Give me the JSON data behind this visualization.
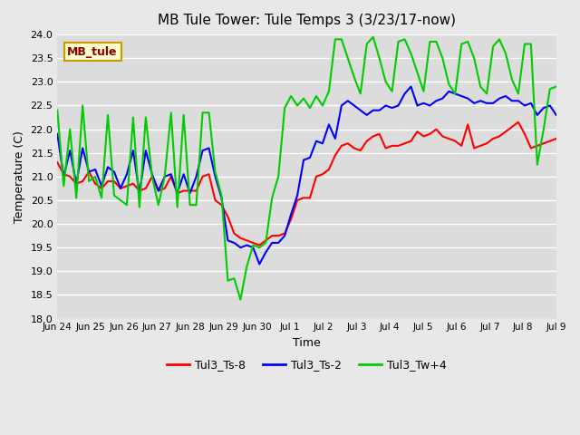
{
  "title": "MB Tule Tower: Tule Temps 3 (3/23/17-now)",
  "xlabel": "Time",
  "ylabel": "Temperature (C)",
  "ylim": [
    18.0,
    24.0
  ],
  "yticks": [
    18.0,
    18.5,
    19.0,
    19.5,
    20.0,
    20.5,
    21.0,
    21.5,
    22.0,
    22.5,
    23.0,
    23.5,
    24.0
  ],
  "bg_color": "#e8e8e8",
  "plot_bg_color": "#dcdcdc",
  "grid_color": "#ffffff",
  "legend_label": "MB_tule",
  "legend_bg": "#ffffcc",
  "legend_border": "#cc9900",
  "series_labels": [
    "Tul3_Ts-8",
    "Tul3_Ts-2",
    "Tul3_Tw+4"
  ],
  "series_colors": [
    "#ff0000",
    "#0000ff",
    "#00cc00"
  ],
  "line_width": 1.5,
  "x_tick_labels": [
    "Jun 24",
    "Jun 25",
    "Jun 26",
    "Jun 27",
    "Jun 28",
    "Jun 29",
    "Jun 30",
    "Jul 1",
    "Jul 2",
    "Jul 3",
    "Jul 4",
    "Jul 5",
    "Jul 6",
    "Jul 7",
    "Jul 8",
    "Jul 9"
  ],
  "x_tick_positions": [
    0,
    1,
    2,
    3,
    4,
    5,
    6,
    7,
    8,
    9,
    10,
    11,
    12,
    13,
    14,
    15
  ],
  "Ts8_y": [
    21.3,
    21.05,
    21.0,
    20.85,
    20.9,
    21.1,
    20.85,
    20.75,
    20.9,
    20.9,
    20.75,
    20.8,
    20.85,
    20.7,
    20.75,
    21.0,
    20.7,
    20.75,
    21.0,
    20.65,
    20.7,
    20.7,
    20.7,
    21.0,
    21.05,
    20.5,
    20.4,
    20.15,
    19.8,
    19.7,
    19.65,
    19.6,
    19.55,
    19.65,
    19.75,
    19.75,
    19.8,
    20.1,
    20.5,
    20.55,
    20.55,
    21.0,
    21.05,
    21.15,
    21.45,
    21.65,
    21.7,
    21.6,
    21.55,
    21.75,
    21.85,
    21.9,
    21.6,
    21.65,
    21.65,
    21.7,
    21.75,
    21.95,
    21.85,
    21.9,
    22.0,
    21.85,
    21.8,
    21.75,
    21.65,
    22.1,
    21.6,
    21.65,
    21.7,
    21.8,
    21.85,
    21.95,
    22.05,
    22.15,
    21.9,
    21.6,
    21.65,
    21.7,
    21.75,
    21.8
  ],
  "Ts2_y": [
    21.9,
    21.0,
    21.55,
    20.85,
    21.6,
    21.1,
    21.15,
    20.8,
    21.2,
    21.1,
    20.75,
    21.05,
    21.55,
    20.65,
    21.55,
    21.05,
    20.7,
    21.0,
    21.05,
    20.65,
    21.05,
    20.65,
    21.0,
    21.55,
    21.6,
    21.0,
    20.55,
    19.65,
    19.6,
    19.5,
    19.55,
    19.5,
    19.15,
    19.4,
    19.6,
    19.6,
    19.75,
    20.2,
    20.6,
    21.35,
    21.4,
    21.75,
    21.7,
    22.1,
    21.8,
    22.5,
    22.6,
    22.5,
    22.4,
    22.3,
    22.4,
    22.4,
    22.5,
    22.45,
    22.5,
    22.75,
    22.9,
    22.5,
    22.55,
    22.5,
    22.6,
    22.65,
    22.8,
    22.75,
    22.7,
    22.65,
    22.55,
    22.6,
    22.55,
    22.55,
    22.65,
    22.7,
    22.6,
    22.6,
    22.5,
    22.55,
    22.3,
    22.45,
    22.5,
    22.3
  ],
  "Tw4_y": [
    22.4,
    20.8,
    22.0,
    20.55,
    22.5,
    20.9,
    21.0,
    20.55,
    22.3,
    20.6,
    20.5,
    20.4,
    22.25,
    20.35,
    22.25,
    21.0,
    20.4,
    21.0,
    22.35,
    20.35,
    22.3,
    20.4,
    20.4,
    22.35,
    22.35,
    21.1,
    20.6,
    18.8,
    18.85,
    18.4,
    19.1,
    19.55,
    19.5,
    19.6,
    20.55,
    21.0,
    22.45,
    22.7,
    22.5,
    22.65,
    22.45,
    22.7,
    22.5,
    22.8,
    23.9,
    23.9,
    23.5,
    23.1,
    22.75,
    23.8,
    23.95,
    23.5,
    23.0,
    22.8,
    23.85,
    23.9,
    23.6,
    23.2,
    22.8,
    23.85,
    23.85,
    23.5,
    22.95,
    22.75,
    23.8,
    23.85,
    23.5,
    22.9,
    22.75,
    23.75,
    23.9,
    23.6,
    23.05,
    22.75,
    23.8,
    23.8,
    21.25,
    22.0,
    22.85,
    22.9
  ]
}
